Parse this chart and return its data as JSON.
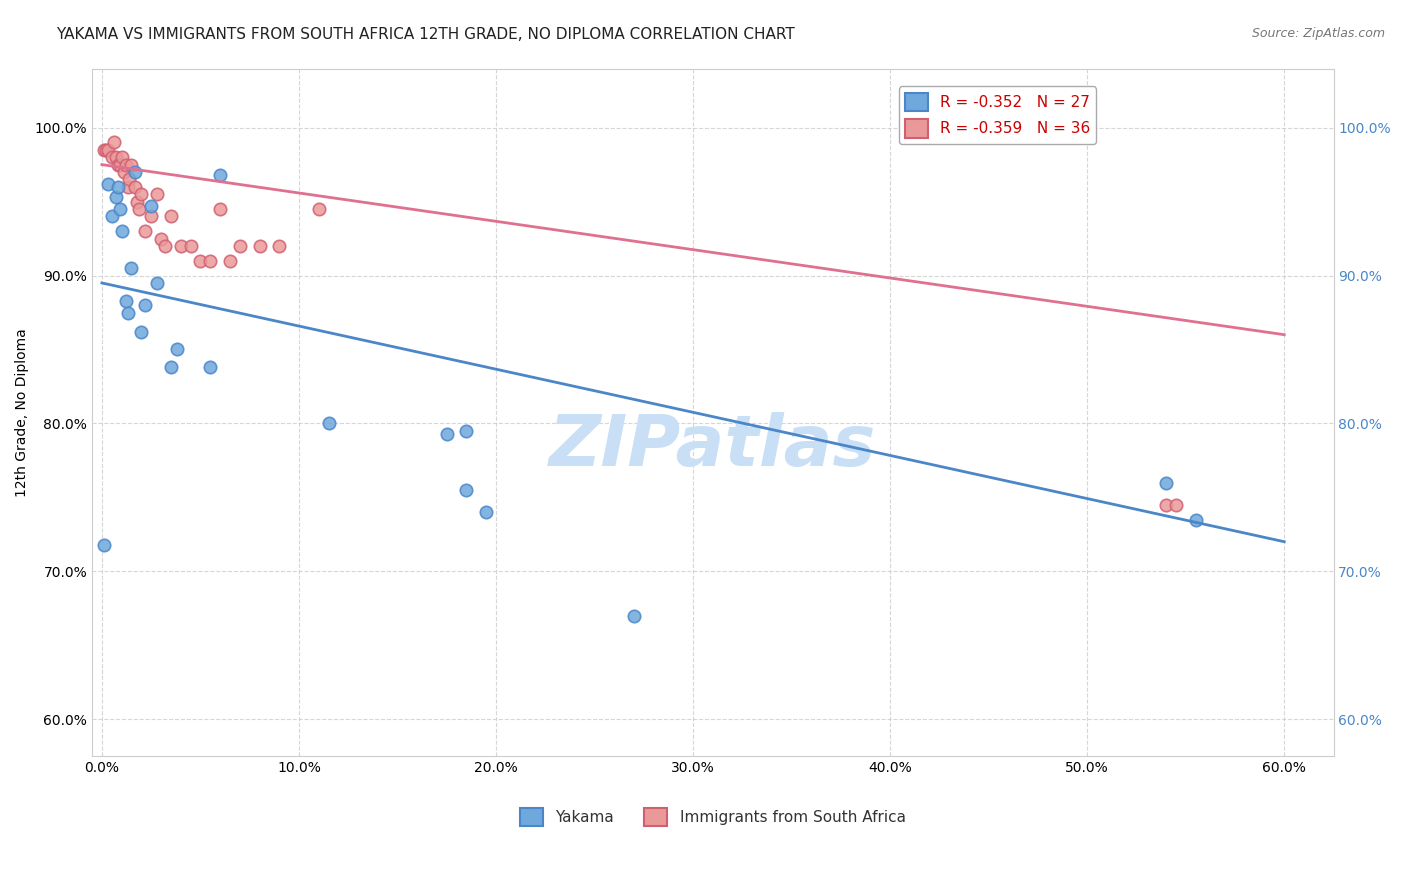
{
  "title": "YAKAMA VS IMMIGRANTS FROM SOUTH AFRICA 12TH GRADE, NO DIPLOMA CORRELATION CHART",
  "source": "Source: ZipAtlas.com",
  "ylabel_label": "12th Grade, No Diploma",
  "x_ticks": [
    0.0,
    0.1,
    0.2,
    0.3,
    0.4,
    0.5,
    0.6
  ],
  "x_tick_labels": [
    "0.0%",
    "10.0%",
    "20.0%",
    "30.0%",
    "40.0%",
    "50.0%",
    "60.0%"
  ],
  "y_ticks": [
    0.6,
    0.7,
    0.8,
    0.9,
    1.0
  ],
  "y_tick_labels": [
    "60.0%",
    "70.0%",
    "80.0%",
    "90.0%",
    "100.0%"
  ],
  "xlim": [
    -0.005,
    0.625
  ],
  "ylim": [
    0.575,
    1.04
  ],
  "blue_color": "#6fa8dc",
  "pink_color": "#ea9999",
  "blue_edge_color": "#4a86c8",
  "pink_edge_color": "#d06070",
  "blue_line_color": "#4a86c8",
  "pink_line_color": "#e07090",
  "legend_blue_r": "R = -0.352",
  "legend_blue_n": "N = 27",
  "legend_pink_r": "R = -0.359",
  "legend_pink_n": "N = 36",
  "legend_label_blue": "Yakama",
  "legend_label_pink": "Immigrants from South Africa",
  "watermark": "ZIPatlas",
  "blue_x": [
    0.001,
    0.003,
    0.005,
    0.007,
    0.008,
    0.009,
    0.01,
    0.012,
    0.013,
    0.015,
    0.017,
    0.02,
    0.022,
    0.025,
    0.028,
    0.035,
    0.038,
    0.055,
    0.06,
    0.115,
    0.175,
    0.185,
    0.185,
    0.195,
    0.27,
    0.54,
    0.555
  ],
  "blue_y": [
    0.718,
    0.962,
    0.94,
    0.953,
    0.96,
    0.945,
    0.93,
    0.883,
    0.875,
    0.905,
    0.97,
    0.862,
    0.88,
    0.947,
    0.895,
    0.838,
    0.85,
    0.838,
    0.968,
    0.8,
    0.793,
    0.755,
    0.795,
    0.74,
    0.67,
    0.76,
    0.735
  ],
  "pink_x": [
    0.001,
    0.002,
    0.003,
    0.005,
    0.006,
    0.007,
    0.008,
    0.009,
    0.01,
    0.011,
    0.012,
    0.013,
    0.014,
    0.015,
    0.017,
    0.018,
    0.019,
    0.02,
    0.022,
    0.025,
    0.028,
    0.03,
    0.032,
    0.035,
    0.04,
    0.045,
    0.05,
    0.055,
    0.06,
    0.065,
    0.07,
    0.08,
    0.09,
    0.11,
    0.54,
    0.545
  ],
  "pink_y": [
    0.985,
    0.985,
    0.985,
    0.98,
    0.99,
    0.98,
    0.975,
    0.975,
    0.98,
    0.97,
    0.975,
    0.96,
    0.965,
    0.975,
    0.96,
    0.95,
    0.945,
    0.955,
    0.93,
    0.94,
    0.955,
    0.925,
    0.92,
    0.94,
    0.92,
    0.92,
    0.91,
    0.91,
    0.945,
    0.91,
    0.92,
    0.92,
    0.92,
    0.945,
    0.745,
    0.745
  ],
  "blue_trend_x": [
    0.0,
    0.6
  ],
  "blue_trend_y": [
    0.895,
    0.72
  ],
  "pink_trend_x": [
    0.0,
    0.6
  ],
  "pink_trend_y": [
    0.975,
    0.86
  ],
  "title_fontsize": 11,
  "axis_fontsize": 10,
  "tick_fontsize": 10,
  "legend_fontsize": 11,
  "background_color": "#ffffff",
  "grid_color": "#cccccc",
  "watermark_color": "#c8dff5",
  "marker_size": 80,
  "marker_edge_width": 1.2
}
